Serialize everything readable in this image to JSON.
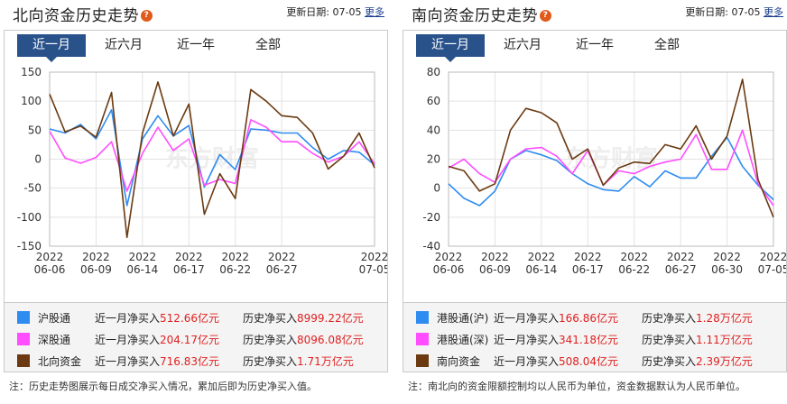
{
  "left": {
    "title": "北向资金历史走势",
    "update_label": "更新日期:",
    "update_date": "07-05",
    "more": "更多",
    "tabs": [
      "近一月",
      "近六月",
      "近一年",
      "全部"
    ],
    "watermark": "东方财富",
    "legend": [
      {
        "name": "沪股通",
        "color": "#2e8cf0",
        "month_label": "近一月净买入",
        "month_value": "512.66亿元",
        "hist_label": "历史净买入",
        "hist_value": "8999.22亿元"
      },
      {
        "name": "深股通",
        "color": "#ff4dff",
        "month_label": "近一月净买入",
        "month_value": "204.17亿元",
        "hist_label": "历史净买入",
        "hist_value": "8096.08亿元"
      },
      {
        "name": "北向资金",
        "color": "#6b3a10",
        "month_label": "近一月净买入",
        "month_value": "716.83亿元",
        "hist_label": "历史净买入",
        "hist_value": "1.71万亿元"
      }
    ],
    "note": "注：历史走势图展示每日成交净买入情况，累加后即为历史净买入值。"
  },
  "right": {
    "title": "南向资金历史走势",
    "update_label": "更新日期:",
    "update_date": "07-05",
    "more": "更多",
    "tabs": [
      "近一月",
      "近六月",
      "近一年",
      "全部"
    ],
    "watermark": "东方财富",
    "legend": [
      {
        "name": "港股通(沪)",
        "color": "#2e8cf0",
        "month_label": "近一月净买入",
        "month_value": "166.86亿元",
        "hist_label": "历史净买入",
        "hist_value": "1.28万亿元"
      },
      {
        "name": "港股通(深)",
        "color": "#ff4dff",
        "month_label": "近一月净买入",
        "month_value": "341.18亿元",
        "hist_label": "历史净买入",
        "hist_value": "1.11万亿元"
      },
      {
        "name": "南向资金",
        "color": "#6b3a10",
        "month_label": "近一月净买入",
        "month_value": "508.04亿元",
        "hist_label": "历史净买入",
        "hist_value": "2.39万亿元"
      }
    ],
    "note": "注：南北向的资金限额控制均以人民币为单位，资金数据默认为人民币单位。"
  },
  "chart_data": [
    {
      "type": "line",
      "x": [
        "2022-06-06",
        "2022-06-07",
        "2022-06-08",
        "2022-06-09",
        "2022-06-10",
        "2022-06-13",
        "2022-06-14",
        "2022-06-15",
        "2022-06-16",
        "2022-06-17",
        "2022-06-20",
        "2022-06-21",
        "2022-06-22",
        "2022-06-23",
        "2022-06-24",
        "2022-06-27",
        "2022-06-28",
        "2022-06-29",
        "2022-06-30",
        "2022-07-01",
        "2022-07-04",
        "2022-07-05"
      ],
      "xticks": [
        [
          "2022",
          "06-06"
        ],
        [
          "2022",
          "06-09"
        ],
        [
          "2022",
          "06-14"
        ],
        [
          "2022",
          "06-17"
        ],
        [
          "2022",
          "06-22"
        ],
        [
          "2022",
          "06-27"
        ],
        [
          "2022",
          "07-05"
        ]
      ],
      "xtick_index": [
        0,
        3,
        6,
        9,
        12,
        15,
        21
      ],
      "ylim": [
        -150,
        150
      ],
      "yticks": [
        150,
        100,
        50,
        0,
        -50,
        -100,
        -150
      ],
      "series": [
        {
          "name": "沪股通",
          "color": "#2e8cf0",
          "values": [
            52,
            45,
            60,
            35,
            85,
            -80,
            35,
            75,
            40,
            58,
            -48,
            8,
            -18,
            52,
            50,
            45,
            45,
            20,
            0,
            15,
            12,
            -10
          ]
        },
        {
          "name": "深股通",
          "color": "#ff4dff",
          "values": [
            48,
            2,
            -7,
            3,
            30,
            -55,
            10,
            55,
            15,
            35,
            -45,
            -35,
            -42,
            68,
            55,
            30,
            30,
            10,
            -5,
            5,
            30,
            -8
          ]
        },
        {
          "name": "北向资金",
          "color": "#6b3a10",
          "values": [
            112,
            47,
            57,
            38,
            115,
            -135,
            45,
            133,
            40,
            95,
            -95,
            -25,
            -68,
            120,
            100,
            75,
            72,
            45,
            -17,
            5,
            45,
            -15
          ]
        }
      ]
    },
    {
      "type": "line",
      "x": [
        "2022-06-06",
        "2022-06-07",
        "2022-06-08",
        "2022-06-09",
        "2022-06-10",
        "2022-06-13",
        "2022-06-14",
        "2022-06-15",
        "2022-06-16",
        "2022-06-17",
        "2022-06-20",
        "2022-06-21",
        "2022-06-22",
        "2022-06-23",
        "2022-06-24",
        "2022-06-27",
        "2022-06-28",
        "2022-06-29",
        "2022-06-30",
        "2022-07-01",
        "2022-07-04",
        "2022-07-05"
      ],
      "xticks": [
        [
          "2022",
          "06-06"
        ],
        [
          "2022",
          "06-09"
        ],
        [
          "2022",
          "06-14"
        ],
        [
          "2022",
          "06-17"
        ],
        [
          "2022",
          "06-22"
        ],
        [
          "2022",
          "06-27"
        ],
        [
          "2022",
          "06-30"
        ],
        [
          "2022",
          "07-05"
        ]
      ],
      "xtick_index": [
        0,
        3,
        6,
        9,
        12,
        15,
        18,
        21
      ],
      "ylim": [
        -40,
        80
      ],
      "yticks": [
        80,
        60,
        40,
        20,
        0,
        -20,
        -40
      ],
      "series": [
        {
          "name": "港股通(沪)",
          "color": "#2e8cf0",
          "values": [
            3,
            -7,
            -12,
            -2,
            20,
            26,
            23,
            19,
            10,
            3,
            -1,
            -2,
            8,
            1,
            12,
            7,
            7,
            22,
            35,
            15,
            2,
            -8
          ]
        },
        {
          "name": "港股通(深)",
          "color": "#ff4dff",
          "values": [
            14,
            20,
            10,
            4,
            20,
            27,
            28,
            22,
            10,
            26,
            2,
            12,
            10,
            15,
            18,
            20,
            37,
            13,
            13,
            40,
            3,
            -12
          ]
        },
        {
          "name": "南向资金",
          "color": "#6b3a10",
          "values": [
            15,
            12,
            -2,
            3,
            40,
            55,
            52,
            45,
            20,
            27,
            2,
            14,
            18,
            17,
            30,
            27,
            43,
            20,
            36,
            75,
            6,
            -20
          ]
        }
      ]
    }
  ]
}
